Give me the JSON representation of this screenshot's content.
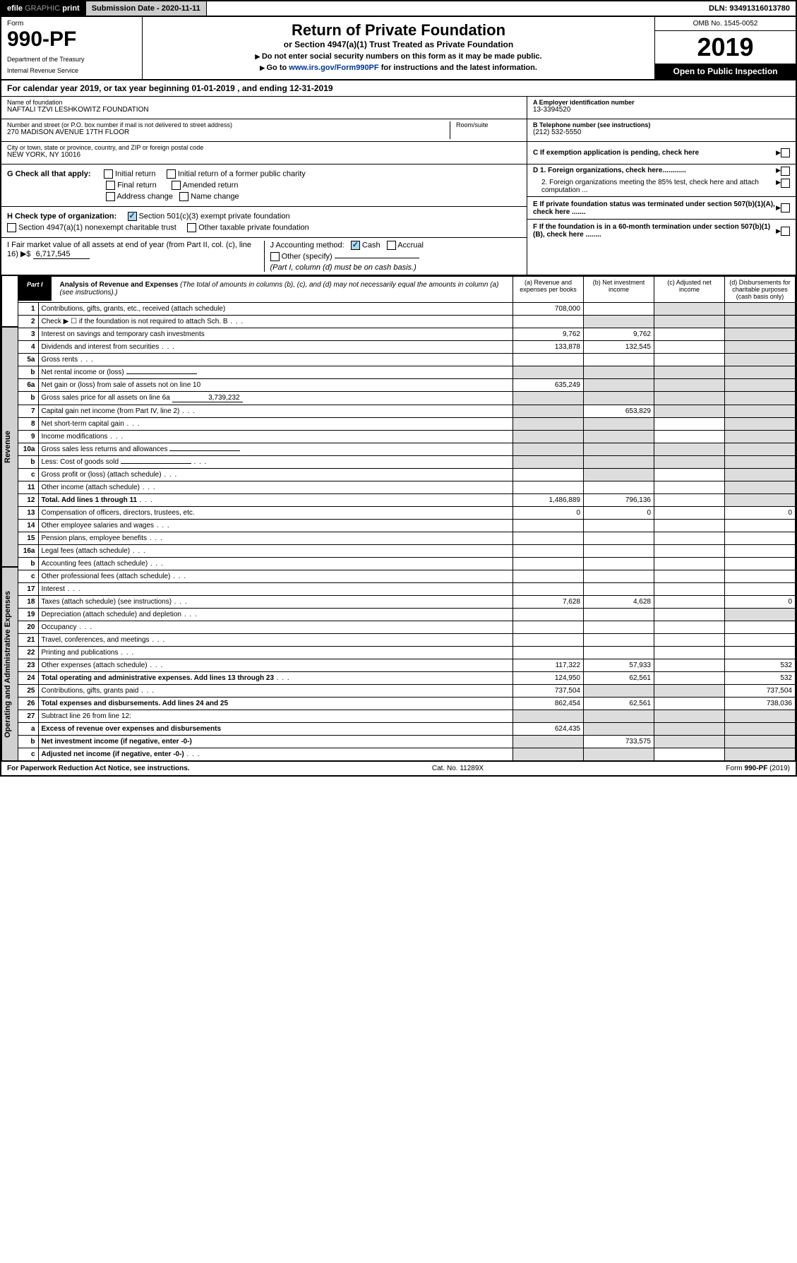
{
  "topbar": {
    "efile": "efile",
    "graphic": "GRAPHIC",
    "print": "print",
    "subdate_label": "Submission Date - 2020-11-11",
    "dln": "DLN: 93491316013780"
  },
  "header": {
    "form_label": "Form",
    "form_number": "990-PF",
    "dept1": "Department of the Treasury",
    "dept2": "Internal Revenue Service",
    "title": "Return of Private Foundation",
    "subtitle": "or Section 4947(a)(1) Trust Treated as Private Foundation",
    "instr1": "Do not enter social security numbers on this form as it may be made public.",
    "instr2_pre": "Go to ",
    "instr2_link": "www.irs.gov/Form990PF",
    "instr2_post": " for instructions and the latest information.",
    "omb": "OMB No. 1545-0052",
    "year": "2019",
    "open": "Open to Public Inspection"
  },
  "calyear": "For calendar year 2019, or tax year beginning 01-01-2019             , and ending 12-31-2019",
  "foundation": {
    "name_label": "Name of foundation",
    "name": "NAFTALI TZVI LESHKOWITZ FOUNDATION",
    "addr_label": "Number and street (or P.O. box number if mail is not delivered to street address)",
    "addr": "270 MADISON AVENUE 17TH FLOOR",
    "room_label": "Room/suite",
    "city_label": "City or town, state or province, country, and ZIP or foreign postal code",
    "city": "NEW YORK, NY  10016",
    "ein_label": "A Employer identification number",
    "ein": "13-3394520",
    "phone_label": "B Telephone number (see instructions)",
    "phone": "(212) 532-5550",
    "c_label": "C If exemption application is pending, check here",
    "d1": "D 1. Foreign organizations, check here............",
    "d2": "2. Foreign organizations meeting the 85% test, check here and attach computation ...",
    "e_label": "E  If private foundation status was terminated under section 507(b)(1)(A), check here .......",
    "f_label": "F  If the foundation is in a 60-month termination under section 507(b)(1)(B), check here ........"
  },
  "section_g": {
    "label": "G Check all that apply:",
    "opt1": "Initial return",
    "opt2": "Initial return of a former public charity",
    "opt3": "Final return",
    "opt4": "Amended return",
    "opt5": "Address change",
    "opt6": "Name change"
  },
  "section_h": {
    "label": "H Check type of organization:",
    "opt1": "Section 501(c)(3) exempt private foundation",
    "opt2": "Section 4947(a)(1) nonexempt charitable trust",
    "opt3": "Other taxable private foundation"
  },
  "section_i": {
    "label": "I Fair market value of all assets at end of year (from Part II, col. (c), line 16) ▶$",
    "value": "6,717,545"
  },
  "section_j": {
    "label": "J Accounting method:",
    "cash": "Cash",
    "accrual": "Accrual",
    "other": "Other (specify)",
    "note": "(Part I, column (d) must be on cash basis.)"
  },
  "part1": {
    "tab": "Part I",
    "title": "Analysis of Revenue and Expenses",
    "subtitle": "(The total of amounts in columns (b), (c), and (d) may not necessarily equal the amounts in column (a) (see instructions).)",
    "col_a": "(a)   Revenue and expenses per books",
    "col_b": "(b)   Net investment income",
    "col_c": "(c)   Adjusted net income",
    "col_d": "(d)   Disbursements for charitable purposes (cash basis only)"
  },
  "sidebar": {
    "revenue": "Revenue",
    "expenses": "Operating and Administrative Expenses"
  },
  "rows": [
    {
      "ln": "1",
      "desc": "Contributions, gifts, grants, etc., received (attach schedule)",
      "a": "708,000",
      "b": "",
      "c": "shaded",
      "d": "shaded"
    },
    {
      "ln": "2",
      "desc": "Check ▶ ☐ if the foundation is not required to attach Sch. B",
      "a": "",
      "b": "shaded",
      "c": "shaded",
      "d": "shaded",
      "dots": true
    },
    {
      "ln": "3",
      "desc": "Interest on savings and temporary cash investments",
      "a": "9,762",
      "b": "9,762",
      "c": "",
      "d": "shaded"
    },
    {
      "ln": "4",
      "desc": "Dividends and interest from securities",
      "a": "133,878",
      "b": "132,545",
      "c": "",
      "d": "shaded",
      "dots": true
    },
    {
      "ln": "5a",
      "desc": "Gross rents",
      "a": "",
      "b": "",
      "c": "",
      "d": "shaded",
      "dots": true
    },
    {
      "ln": "b",
      "desc": "Net rental income or (loss)",
      "a": "shaded",
      "b": "shaded",
      "c": "shaded",
      "d": "shaded",
      "input": true
    },
    {
      "ln": "6a",
      "desc": "Net gain or (loss) from sale of assets not on line 10",
      "a": "635,249",
      "b": "shaded",
      "c": "shaded",
      "d": "shaded"
    },
    {
      "ln": "b",
      "desc": "Gross sales price for all assets on line 6a",
      "a": "shaded",
      "b": "shaded",
      "c": "shaded",
      "d": "shaded",
      "val": "3,739,232",
      "input": true
    },
    {
      "ln": "7",
      "desc": "Capital gain net income (from Part IV, line 2)",
      "a": "shaded",
      "b": "653,829",
      "c": "shaded",
      "d": "shaded",
      "dots": true
    },
    {
      "ln": "8",
      "desc": "Net short-term capital gain",
      "a": "shaded",
      "b": "shaded",
      "c": "",
      "d": "shaded",
      "dots": true
    },
    {
      "ln": "9",
      "desc": "Income modifications",
      "a": "shaded",
      "b": "shaded",
      "c": "",
      "d": "shaded",
      "dots": true
    },
    {
      "ln": "10a",
      "desc": "Gross sales less returns and allowances",
      "a": "shaded",
      "b": "shaded",
      "c": "shaded",
      "d": "shaded",
      "input": true
    },
    {
      "ln": "b",
      "desc": "Less: Cost of goods sold",
      "a": "shaded",
      "b": "shaded",
      "c": "shaded",
      "d": "shaded",
      "input": true,
      "dots": true
    },
    {
      "ln": "c",
      "desc": "Gross profit or (loss) (attach schedule)",
      "a": "",
      "b": "shaded",
      "c": "",
      "d": "shaded",
      "dots": true
    },
    {
      "ln": "11",
      "desc": "Other income (attach schedule)",
      "a": "",
      "b": "",
      "c": "",
      "d": "shaded",
      "dots": true
    },
    {
      "ln": "12",
      "desc": "Total. Add lines 1 through 11",
      "a": "1,486,889",
      "b": "796,136",
      "c": "",
      "d": "shaded",
      "bold": true,
      "dots": true
    },
    {
      "ln": "13",
      "desc": "Compensation of officers, directors, trustees, etc.",
      "a": "0",
      "b": "0",
      "c": "",
      "d": "0"
    },
    {
      "ln": "14",
      "desc": "Other employee salaries and wages",
      "a": "",
      "b": "",
      "c": "",
      "d": "",
      "dots": true
    },
    {
      "ln": "15",
      "desc": "Pension plans, employee benefits",
      "a": "",
      "b": "",
      "c": "",
      "d": "",
      "dots": true
    },
    {
      "ln": "16a",
      "desc": "Legal fees (attach schedule)",
      "a": "",
      "b": "",
      "c": "",
      "d": "",
      "dots": true
    },
    {
      "ln": "b",
      "desc": "Accounting fees (attach schedule)",
      "a": "",
      "b": "",
      "c": "",
      "d": "",
      "dots": true
    },
    {
      "ln": "c",
      "desc": "Other professional fees (attach schedule)",
      "a": "",
      "b": "",
      "c": "",
      "d": "",
      "dots": true
    },
    {
      "ln": "17",
      "desc": "Interest",
      "a": "",
      "b": "",
      "c": "",
      "d": "",
      "dots": true
    },
    {
      "ln": "18",
      "desc": "Taxes (attach schedule) (see instructions)",
      "a": "7,628",
      "b": "4,628",
      "c": "",
      "d": "0",
      "dots": true
    },
    {
      "ln": "19",
      "desc": "Depreciation (attach schedule) and depletion",
      "a": "",
      "b": "",
      "c": "",
      "d": "shaded",
      "dots": true
    },
    {
      "ln": "20",
      "desc": "Occupancy",
      "a": "",
      "b": "",
      "c": "",
      "d": "",
      "dots": true
    },
    {
      "ln": "21",
      "desc": "Travel, conferences, and meetings",
      "a": "",
      "b": "",
      "c": "",
      "d": "",
      "dots": true
    },
    {
      "ln": "22",
      "desc": "Printing and publications",
      "a": "",
      "b": "",
      "c": "",
      "d": "",
      "dots": true
    },
    {
      "ln": "23",
      "desc": "Other expenses (attach schedule)",
      "a": "117,322",
      "b": "57,933",
      "c": "",
      "d": "532",
      "dots": true
    },
    {
      "ln": "24",
      "desc": "Total operating and administrative expenses. Add lines 13 through 23",
      "a": "124,950",
      "b": "62,561",
      "c": "",
      "d": "532",
      "bold": true,
      "dots": true
    },
    {
      "ln": "25",
      "desc": "Contributions, gifts, grants paid",
      "a": "737,504",
      "b": "shaded",
      "c": "shaded",
      "d": "737,504",
      "dots": true
    },
    {
      "ln": "26",
      "desc": "Total expenses and disbursements. Add lines 24 and 25",
      "a": "862,454",
      "b": "62,561",
      "c": "",
      "d": "738,036",
      "bold": true
    },
    {
      "ln": "27",
      "desc": "Subtract line 26 from line 12:",
      "a": "shaded",
      "b": "shaded",
      "c": "shaded",
      "d": "shaded"
    },
    {
      "ln": "a",
      "desc": "Excess of revenue over expenses and disbursements",
      "a": "624,435",
      "b": "shaded",
      "c": "shaded",
      "d": "shaded",
      "bold": true
    },
    {
      "ln": "b",
      "desc": "Net investment income (if negative, enter -0-)",
      "a": "shaded",
      "b": "733,575",
      "c": "shaded",
      "d": "shaded",
      "bold": true
    },
    {
      "ln": "c",
      "desc": "Adjusted net income (if negative, enter -0-)",
      "a": "shaded",
      "b": "shaded",
      "c": "",
      "d": "shaded",
      "bold": true,
      "dots": true
    }
  ],
  "footer": {
    "left": "For Paperwork Reduction Act Notice, see instructions.",
    "center": "Cat. No. 11289X",
    "right": "Form 990-PF (2019)"
  }
}
